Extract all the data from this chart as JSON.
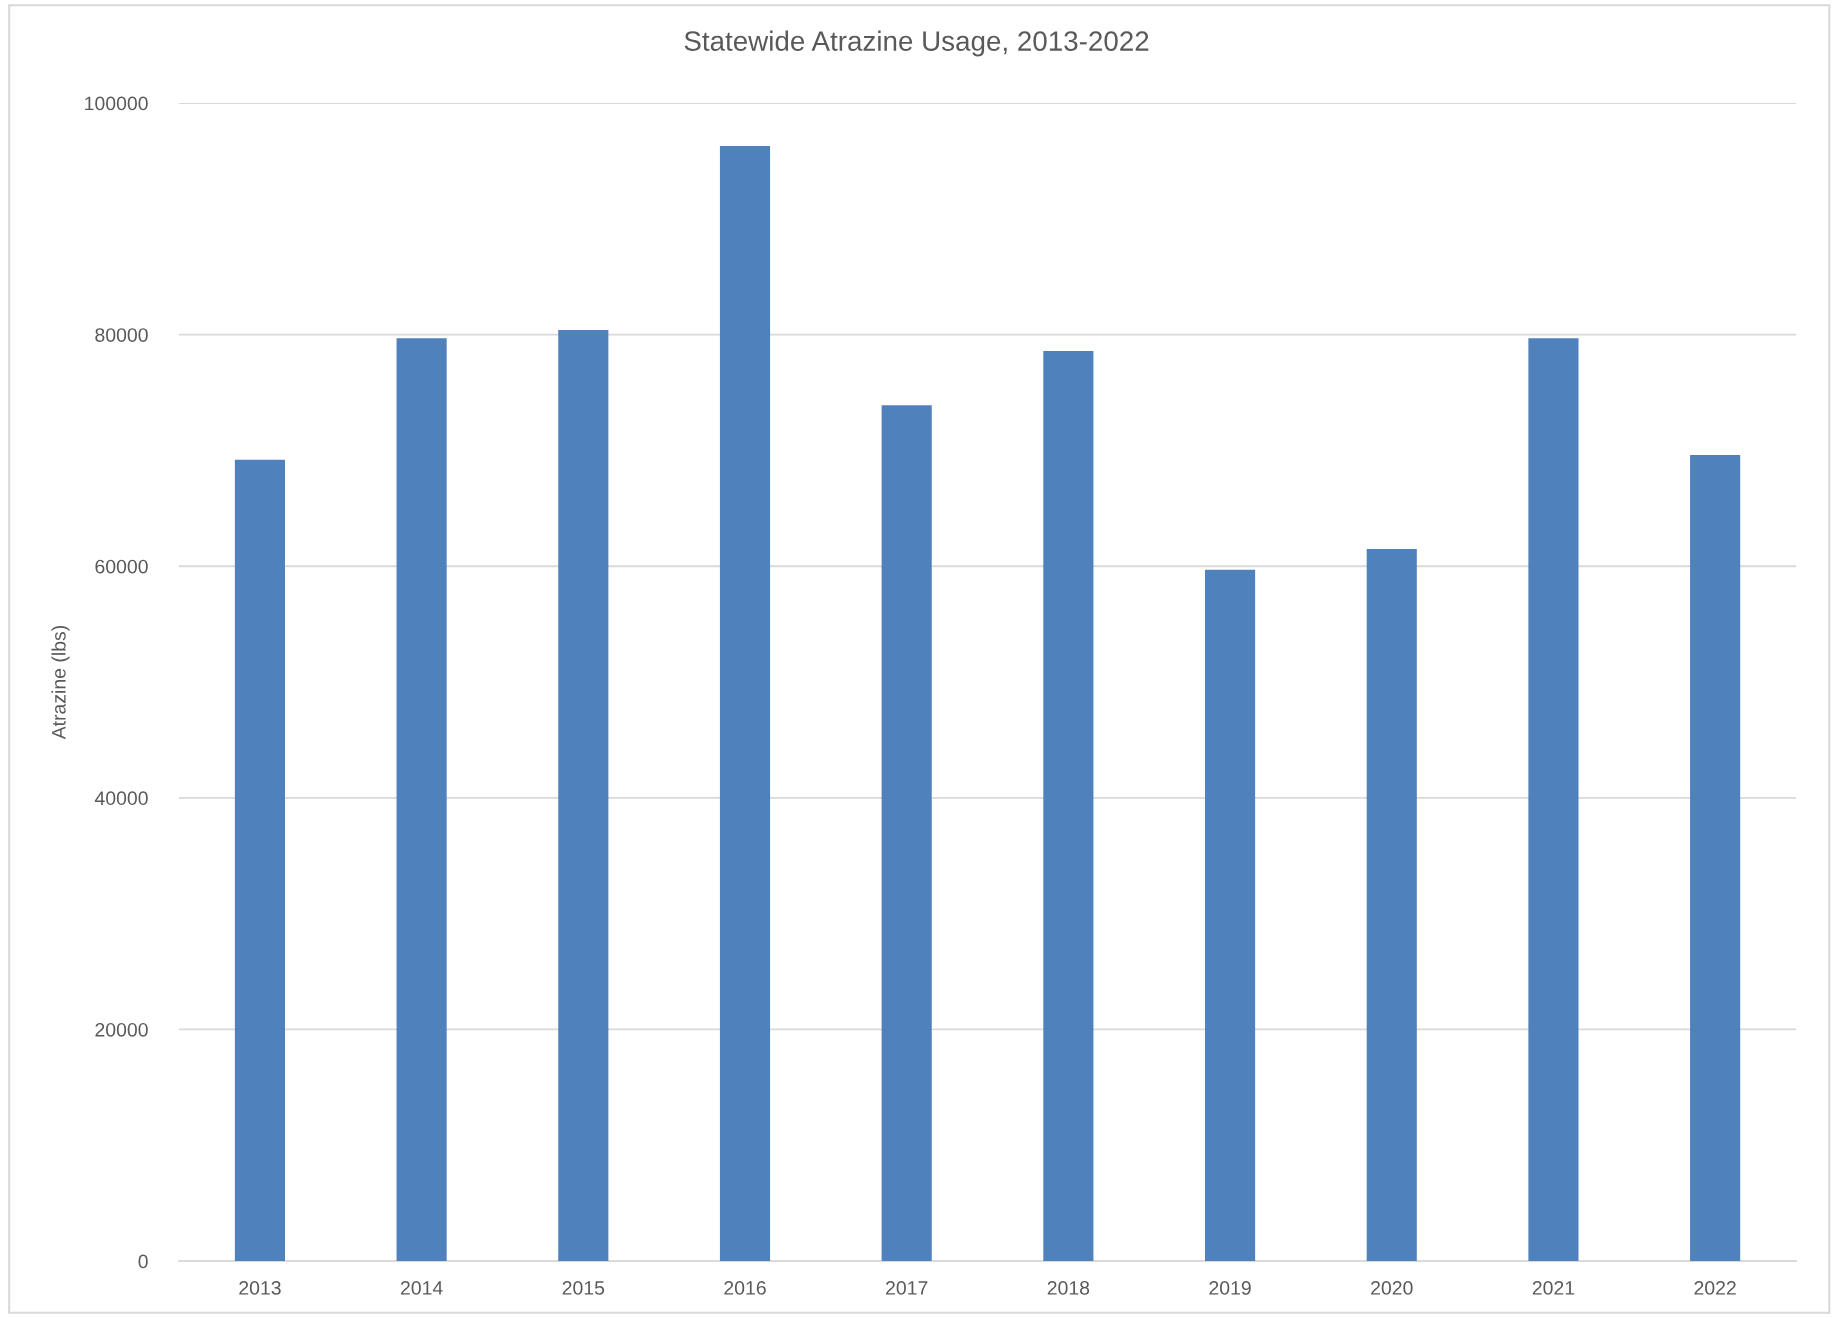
{
  "chart_data": {
    "type": "bar",
    "title": "Statewide Atrazine Usage, 2013-2022",
    "ylabel": "Atrazine (lbs)",
    "categories": [
      "2013",
      "2014",
      "2015",
      "2016",
      "2017",
      "2018",
      "2019",
      "2020",
      "2021",
      "2022"
    ],
    "values": [
      69200,
      79700,
      80400,
      96300,
      73900,
      78600,
      59700,
      61500,
      79700,
      69600
    ],
    "color": "#4f81bd",
    "ylim": [
      0,
      100000
    ],
    "yticks": [
      0,
      20000,
      40000,
      60000,
      80000,
      100000
    ],
    "grid": "y"
  }
}
